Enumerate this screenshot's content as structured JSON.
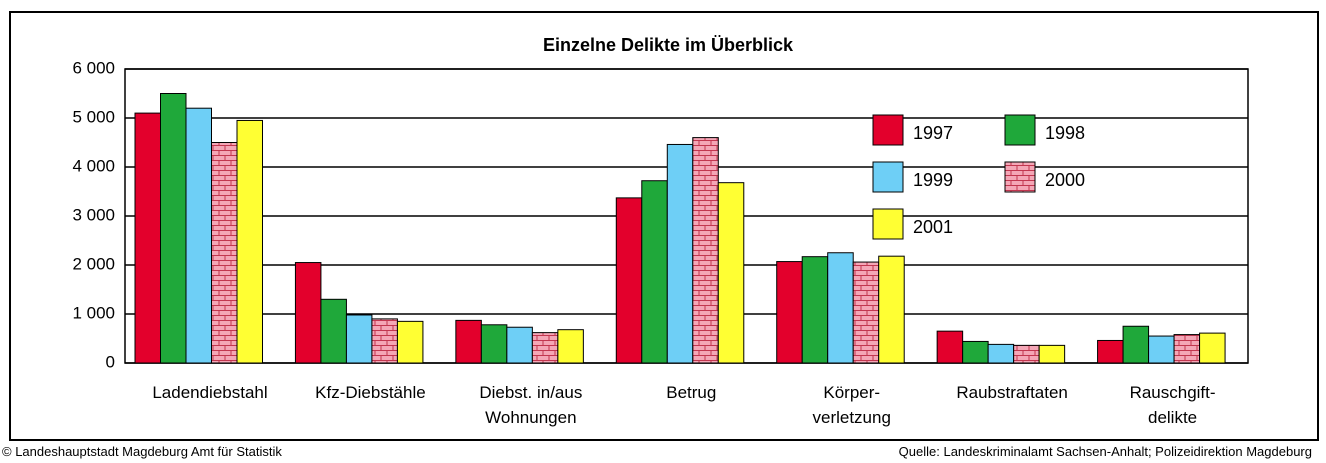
{
  "chart_data": {
    "type": "bar",
    "title": "Einzelne Delikte im Überblick",
    "categories": [
      "Ladendiebstahl",
      "Kfz-Diebstähle",
      "Diebst. in/aus\nWohnungen",
      "Betrug",
      "Körper-\nverletzung",
      "Raubstraftaten",
      "Rauschgift-\ndelikte"
    ],
    "series": [
      {
        "name": "1997",
        "color": "#e3002c",
        "values": [
          5100,
          2050,
          870,
          3370,
          2070,
          650,
          460
        ]
      },
      {
        "name": "1998",
        "color": "#1fa83a",
        "values": [
          5500,
          1300,
          780,
          3720,
          2170,
          440,
          750
        ]
      },
      {
        "name": "1999",
        "color": "#6ecff6",
        "values": [
          5200,
          980,
          730,
          4460,
          2250,
          380,
          550
        ]
      },
      {
        "name": "2000",
        "color": "#f4a6b6",
        "pattern": "brick",
        "values": [
          4500,
          900,
          620,
          4600,
          2060,
          360,
          580
        ]
      },
      {
        "name": "2001",
        "color": "#ffff33",
        "values": [
          4950,
          850,
          680,
          3680,
          2180,
          360,
          610
        ]
      }
    ],
    "ylim": [
      0,
      6000
    ],
    "yticks": [
      0,
      {
        "value": 1000,
        "label": "1 000"
      },
      {
        "value": 2000,
        "label": "2 000"
      },
      {
        "value": 3000,
        "label": "3 000"
      },
      {
        "value": 4000,
        "label": "4 000"
      },
      {
        "value": 5000,
        "label": "5 000"
      },
      {
        "value": 6000,
        "label": "6 000"
      }
    ],
    "grid": true,
    "legend": "upper right",
    "footer_left": "© Landeshauptstadt Magdeburg  Amt für Statistik",
    "footer_right": "Quelle: Landeskriminalamt Sachsen-Anhalt; Polizeidirektion Magdeburg"
  }
}
